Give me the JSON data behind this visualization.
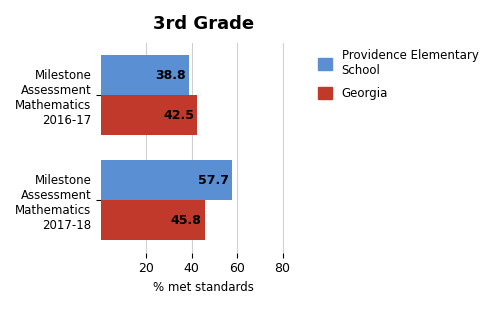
{
  "title": "3rd Grade",
  "xlabel": "% met standards",
  "categories": [
    "Milestone\nAssessment\nMathematics\n2016-17",
    "Milestone\nAssessment\nMathematics\n2017-18"
  ],
  "school_values": [
    38.8,
    57.7
  ],
  "georgia_values": [
    42.5,
    45.8
  ],
  "school_color": "#5B8FD4",
  "georgia_color": "#C0392B",
  "school_label": "Providence Elementary\nSchool",
  "georgia_label": "Georgia",
  "xlim": [
    0,
    90
  ],
  "xticks": [
    20,
    40,
    60,
    80
  ],
  "bar_height": 0.38,
  "title_fontsize": 13,
  "label_fontsize": 8.5,
  "tick_fontsize": 9,
  "value_fontsize": 9,
  "background_color": "#ffffff"
}
